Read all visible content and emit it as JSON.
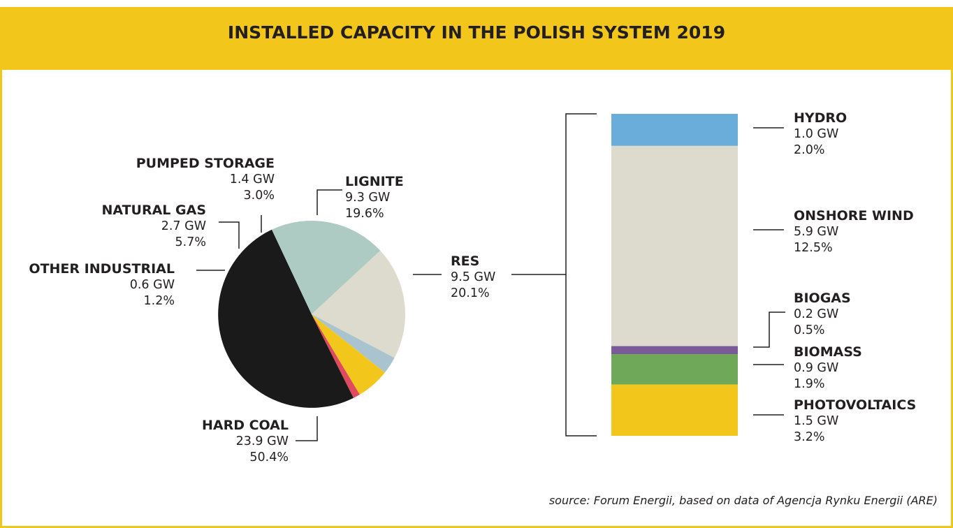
{
  "title": "INSTALLED CAPACITY IN THE POLISH SYSTEM 2019",
  "source": "source: Forum Energii, based on data of Agencja Rynku Energii (ARE)",
  "chart_data": [
    {
      "type": "pie",
      "slices": [
        {
          "key": "hard_coal",
          "name": "HARD COAL",
          "gw_label": "23.9 GW",
          "pct_label": "50.4%",
          "value": 50.4,
          "color": "#1a1a1a"
        },
        {
          "key": "res",
          "name": "RES",
          "gw_label": "9.5 GW",
          "pct_label": "20.1%",
          "value": 20.1,
          "color": "#aecbc3"
        },
        {
          "key": "lignite",
          "name": "LIGNITE",
          "gw_label": "9.3 GW",
          "pct_label": "19.6%",
          "value": 19.6,
          "color": "#dddace"
        },
        {
          "key": "pumped_storage",
          "name": "PUMPED STORAGE",
          "gw_label": "1.4 GW",
          "pct_label": "3.0%",
          "value": 3.0,
          "color": "#a9c4cf"
        },
        {
          "key": "natural_gas",
          "name": "NATURAL GAS",
          "gw_label": "2.7 GW",
          "pct_label": "5.7%",
          "value": 5.7,
          "color": "#f2c61b"
        },
        {
          "key": "other_industrial",
          "name": "OTHER INDUSTRIAL",
          "gw_label": "0.6 GW",
          "pct_label": "1.2%",
          "value": 1.2,
          "color": "#e04a5f"
        }
      ]
    },
    {
      "type": "bar",
      "stacked": true,
      "segments": [
        {
          "key": "hydro",
          "name": "HYDRO",
          "gw_label": "1.0 GW",
          "pct_label": "2.0%",
          "value": 2.0,
          "color": "#6aaddb"
        },
        {
          "key": "onshore_wind",
          "name": "ONSHORE WIND",
          "gw_label": "5.9 GW",
          "pct_label": "12.5%",
          "value": 12.5,
          "color": "#dddace"
        },
        {
          "key": "biogas",
          "name": "BIOGAS",
          "gw_label": "0.2 GW",
          "pct_label": "0.5%",
          "value": 0.5,
          "color": "#7b5a9a"
        },
        {
          "key": "biomass",
          "name": "BIOMASS",
          "gw_label": "0.9 GW",
          "pct_label": "1.9%",
          "value": 1.9,
          "color": "#70a85a"
        },
        {
          "key": "photovoltaics",
          "name": "PHOTOVOLTAICS",
          "gw_label": "1.5 GW",
          "pct_label": "3.2%",
          "value": 3.2,
          "color": "#f2c61b"
        }
      ]
    }
  ]
}
